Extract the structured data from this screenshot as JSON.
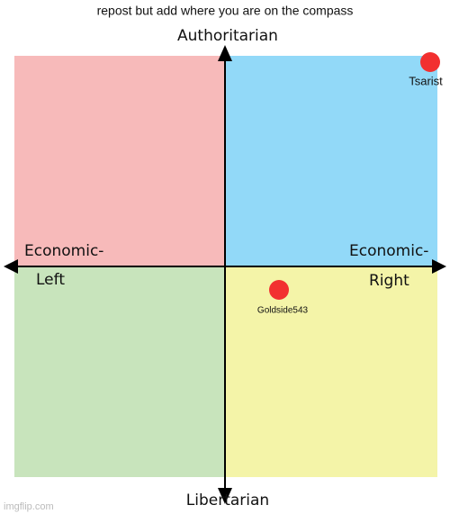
{
  "caption": "repost but add where you are on the compass",
  "axes": {
    "top": "Authoritarian",
    "bottom": "Libertarian",
    "left": [
      "Economic-",
      "Left"
    ],
    "right": [
      "Economic-",
      "Right"
    ]
  },
  "points": [
    {
      "label": "Tsarist"
    },
    {
      "label": "Goldside543"
    }
  ],
  "watermark": "imgflip.com"
}
